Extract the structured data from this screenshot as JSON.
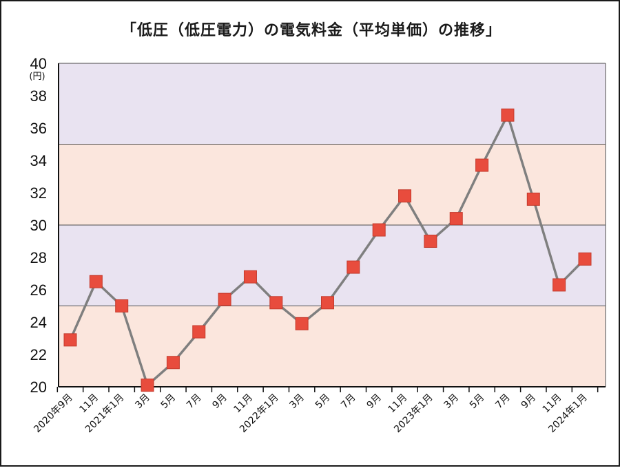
{
  "colors": {
    "band_a": "#e9e3f1",
    "band_b": "#fbe6dd",
    "line": "#7f7f7f",
    "marker": "#e84c3d",
    "grid": "#4a4a4a"
  },
  "chart_data": {
    "type": "line",
    "title": "「低圧（低圧電力）の電気料金（平均単価）の推移」",
    "ylabel": "(円)",
    "xlabel": "",
    "ylim": [
      20,
      40
    ],
    "yticks": [
      "20",
      "22",
      "24",
      "26",
      "28",
      "30",
      "32",
      "34",
      "36",
      "38",
      "40"
    ],
    "grid": true,
    "bands": [
      {
        "from": 20,
        "to": 25
      },
      {
        "from": 25,
        "to": 30
      },
      {
        "from": 30,
        "to": 35
      },
      {
        "from": 35,
        "to": 40
      }
    ],
    "categories": [
      "2020年9月",
      "11月",
      "2021年1月",
      "3月",
      "5月",
      "7月",
      "9月",
      "11月",
      "2022年1月",
      "3月",
      "5月",
      "7月",
      "9月",
      "11月",
      "2023年1月",
      "3月",
      "5月",
      "7月",
      "9月",
      "11月",
      "2024年1月"
    ],
    "series": [
      {
        "values": [
          22.9,
          26.5,
          25.0,
          20.1,
          21.5,
          23.4,
          25.4,
          26.8,
          25.2,
          23.9,
          25.2,
          27.4,
          29.7,
          31.8,
          29.0,
          30.4,
          33.7,
          36.8,
          31.6,
          26.3,
          27.9
        ]
      }
    ]
  }
}
